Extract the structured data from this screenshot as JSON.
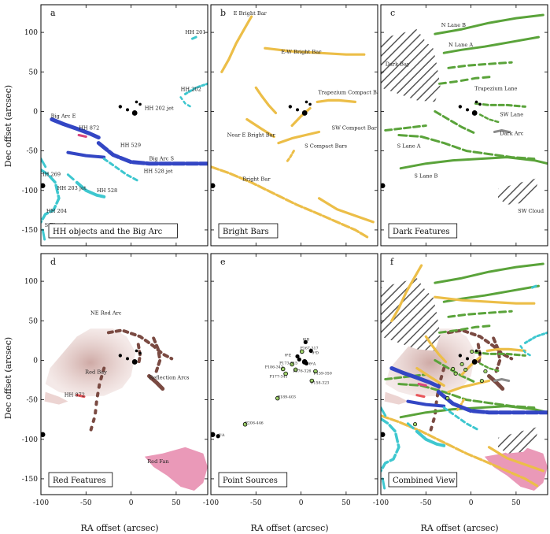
{
  "figure": {
    "xlabel": "RA offset (arcsec)",
    "ylabel": "Dec offset (arcsec)",
    "x_ticks": [
      -100,
      -50,
      0,
      50
    ],
    "y_ticks": [
      100,
      50,
      0,
      -50,
      -100,
      -150
    ],
    "xlim": [
      -100,
      85
    ],
    "ylim": [
      -170,
      135
    ]
  },
  "colors": {
    "hh": "#3ec7cf",
    "bigarc": "#3346c4",
    "bright": "#ecbe48",
    "dark": "#5aa33a",
    "redarc": "#7a4a42",
    "redfan": "#d9467d",
    "redbay": "#e8a4a4",
    "hatch": "#555555",
    "star": "#000000"
  },
  "stars": [
    {
      "x": -12,
      "y": 6,
      "r": 2.2
    },
    {
      "x": -4,
      "y": 2,
      "r": 2.0
    },
    {
      "x": 6,
      "y": 12,
      "r": 1.8
    },
    {
      "x": 10,
      "y": 9,
      "r": 1.8
    },
    {
      "x": 4,
      "y": -2,
      "r": 3.4
    },
    {
      "x": -98,
      "y": -94,
      "r": 3.2
    }
  ],
  "chart_data": [
    {
      "panel": "a",
      "type": "scatter",
      "title": "HH objects and the Big Arc",
      "labels": [
        {
          "text": "HH 201",
          "x": 60,
          "y": 98
        },
        {
          "text": "HH 202",
          "x": 55,
          "y": 26
        },
        {
          "text": "HH 202 jet",
          "x": 15,
          "y": 2
        },
        {
          "text": "Big Arc E",
          "x": -89,
          "y": -8
        },
        {
          "text": "HH 872",
          "x": -58,
          "y": -23
        },
        {
          "text": "HH 529",
          "x": -12,
          "y": -45
        },
        {
          "text": "Big Arc S",
          "x": 20,
          "y": -62
        },
        {
          "text": "HH 528 jet",
          "x": 14,
          "y": -78
        },
        {
          "text": "HH 269",
          "x": -101,
          "y": -82
        },
        {
          "text": "HH 203 jet",
          "x": -82,
          "y": -99
        },
        {
          "text": "HH 528",
          "x": -38,
          "y": -102
        },
        {
          "text": "HH 204",
          "x": -94,
          "y": -128
        },
        {
          "text": "S Blue Arc",
          "x": -96,
          "y": -146
        }
      ]
    },
    {
      "panel": "b",
      "type": "line",
      "title": "Bright Bars",
      "labels": [
        {
          "text": "E Bright Bar",
          "x": -75,
          "y": 122
        },
        {
          "text": "E-W Bright Bar",
          "x": -22,
          "y": 73
        },
        {
          "text": "Trapezium Compact Bar",
          "x": 19,
          "y": 22
        },
        {
          "text": "SW Compact Bar",
          "x": 34,
          "y": -23
        },
        {
          "text": "Near E Bright Bar",
          "x": -82,
          "y": -32
        },
        {
          "text": "S Compact Bars",
          "x": 4,
          "y": -46
        },
        {
          "text": "Bright Bar",
          "x": -65,
          "y": -88
        }
      ]
    },
    {
      "panel": "c",
      "type": "line",
      "title": "Dark Features",
      "labels": [
        {
          "text": "N Lane B",
          "x": -33,
          "y": 107
        },
        {
          "text": "N Lane A",
          "x": -25,
          "y": 82
        },
        {
          "text": "Dark Bay",
          "x": -95,
          "y": 58
        },
        {
          "text": "Trapezium Lane",
          "x": 4,
          "y": 27
        },
        {
          "text": "SW Lane",
          "x": 32,
          "y": -6
        },
        {
          "text": "Dark Arc",
          "x": 32,
          "y": -30
        },
        {
          "text": "S Lane A",
          "x": -82,
          "y": -46
        },
        {
          "text": "S Lane B",
          "x": -63,
          "y": -84
        },
        {
          "text": "SW Cloud",
          "x": 52,
          "y": -128
        }
      ]
    },
    {
      "panel": "d",
      "type": "scatter",
      "title": "Red Features",
      "labels": [
        {
          "text": "NE Red Arc",
          "x": -45,
          "y": 58
        },
        {
          "text": "Red Bay",
          "x": -51,
          "y": -17
        },
        {
          "text": "HH 872",
          "x": -74,
          "y": -46
        },
        {
          "text": "Reflection Arcs",
          "x": 20,
          "y": -24
        },
        {
          "text": "Red Fan",
          "x": 18,
          "y": -130
        }
      ]
    },
    {
      "panel": "e",
      "type": "scatter",
      "title": "Point Sources",
      "points": [
        {
          "label": "θ¹A",
          "x": -92,
          "y": -96
        },
        {
          "label": "P208-446",
          "x": -62,
          "y": -81
        },
        {
          "label": "P189-403",
          "x": -26,
          "y": -48
        },
        {
          "label": "P177-341",
          "x": -17,
          "y": -17
        },
        {
          "label": "P186-342",
          "x": -20,
          "y": -11
        },
        {
          "label": "P176-326",
          "x": -6,
          "y": -12
        },
        {
          "label": "P173-315",
          "x": -10,
          "y": -5
        },
        {
          "label": "P158-323",
          "x": 12,
          "y": -26
        },
        {
          "label": "P159-350",
          "x": 16,
          "y": -14
        },
        {
          "label": "θ¹B",
          "x": 5,
          "y": 23
        },
        {
          "label": "θ¹C",
          "x": -2,
          "y": 1
        },
        {
          "label": "θ¹D",
          "x": 11,
          "y": 12
        },
        {
          "label": "θ²A",
          "x": 6,
          "y": -4
        },
        {
          "label": "P167-317",
          "x": 1,
          "y": 11
        },
        {
          "label": "θ¹E",
          "x": -4,
          "y": 5
        }
      ],
      "labels": [
        {
          "text": "θ¹A",
          "x": -92,
          "y": -96
        },
        {
          "text": "P208-446",
          "x": -62,
          "y": -81
        },
        {
          "text": "P189-403",
          "x": -26,
          "y": -48
        },
        {
          "text": "P177-341",
          "x": -35,
          "y": -22
        },
        {
          "text": "P186-342",
          "x": -40,
          "y": -10
        },
        {
          "text": "P176-326",
          "x": -9,
          "y": -15
        },
        {
          "text": "P173-315",
          "x": -24,
          "y": -5
        },
        {
          "text": "P158-323",
          "x": 11,
          "y": -30
        },
        {
          "text": "P159-350",
          "x": 14,
          "y": -18
        },
        {
          "text": "θ¹B",
          "x": 2,
          "y": 25
        },
        {
          "text": "P167-317",
          "x": -1,
          "y": 14
        },
        {
          "text": "θ¹D",
          "x": 12,
          "y": 8
        },
        {
          "text": "θ²A",
          "x": 9,
          "y": -6
        },
        {
          "text": "θ¹E",
          "x": -18,
          "y": 5
        }
      ]
    },
    {
      "panel": "f",
      "type": "scatter",
      "title": "Combined View",
      "labels": []
    }
  ]
}
